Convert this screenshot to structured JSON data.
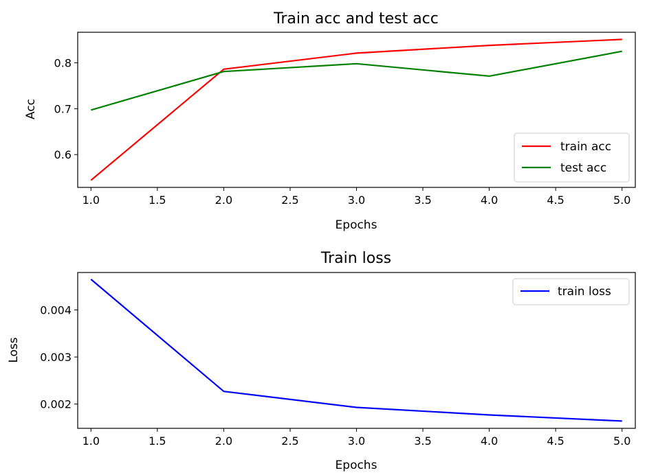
{
  "chart_data": [
    {
      "type": "line",
      "title": "Train acc and test acc",
      "xlabel": "Epochs",
      "ylabel": "Acc",
      "x": [
        1,
        2,
        3,
        4,
        5
      ],
      "xlim": [
        0.9,
        5.1
      ],
      "ylim": [
        0.5285,
        0.8665
      ],
      "xticks": [
        "1.0",
        "1.5",
        "2.0",
        "2.5",
        "3.0",
        "3.5",
        "4.0",
        "4.5",
        "5.0"
      ],
      "yticks": [
        "0.6",
        "0.7",
        "0.8"
      ],
      "legend_position": "lower-right",
      "series": [
        {
          "name": "train acc",
          "color": "#ff0000",
          "values": [
            0.544,
            0.786,
            0.821,
            0.838,
            0.851
          ]
        },
        {
          "name": "test acc",
          "color": "#008000",
          "values": [
            0.697,
            0.781,
            0.798,
            0.771,
            0.825
          ]
        }
      ]
    },
    {
      "type": "line",
      "title": "Train loss",
      "xlabel": "Epochs",
      "ylabel": "Loss",
      "x": [
        1,
        2,
        3,
        4,
        5
      ],
      "xlim": [
        0.9,
        5.1
      ],
      "ylim": [
        0.001485,
        0.004795
      ],
      "xticks": [
        "1.0",
        "1.5",
        "2.0",
        "2.5",
        "3.0",
        "3.5",
        "4.0",
        "4.5",
        "5.0"
      ],
      "yticks": [
        "0.002",
        "0.003",
        "0.004"
      ],
      "legend_position": "top-right",
      "series": [
        {
          "name": "train loss",
          "color": "#0000ff",
          "values": [
            0.00465,
            0.00227,
            0.00193,
            0.00177,
            0.00164
          ]
        }
      ]
    }
  ]
}
